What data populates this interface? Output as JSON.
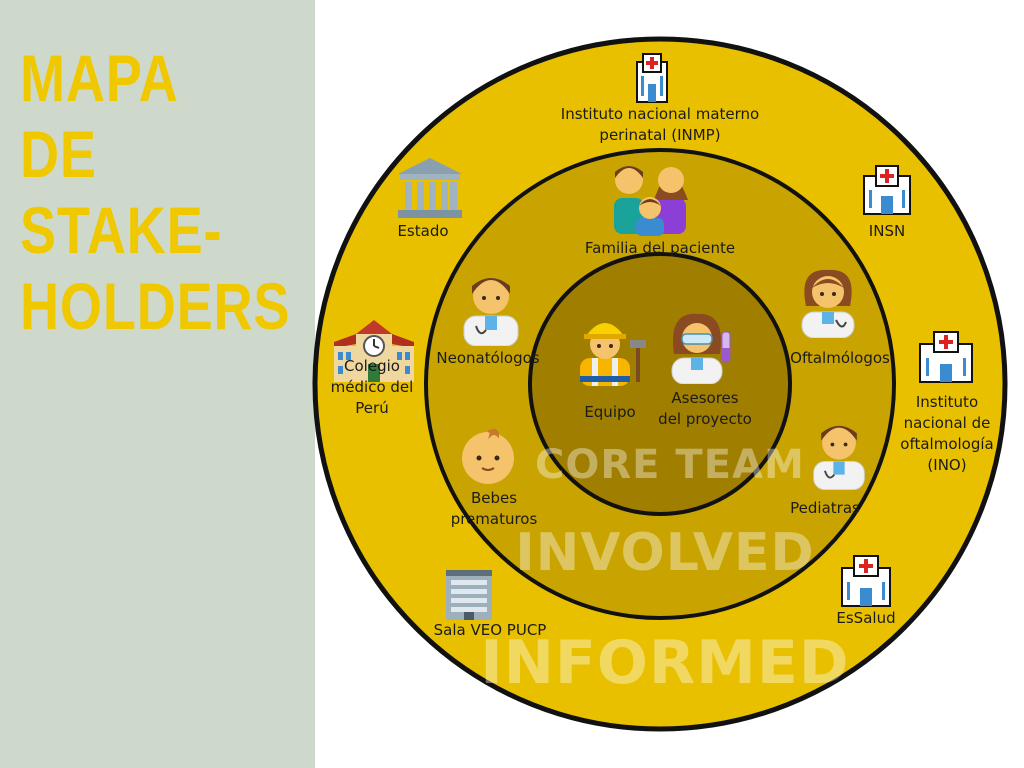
{
  "title_lines": [
    "MAPA",
    "DE",
    "STAKE-",
    "HOLDERS"
  ],
  "colors": {
    "sidebar": "#cfd9cb",
    "title": "#f0c800",
    "outer_ring": "#e8c000",
    "middle_ring": "#c9a400",
    "inner_core": "#a07e00",
    "stroke": "#111111"
  },
  "rings": {
    "core": "CORE TEAM",
    "involved": "INVOLVED",
    "informed": "INFORMED"
  },
  "stakeholders": {
    "inmp": {
      "label_line1": "Instituto nacional materno",
      "label_line2": "perinatal (INMP)",
      "icon": "hospital-icon"
    },
    "estado": {
      "label": "Estado",
      "icon": "government-building-icon"
    },
    "insn": {
      "label": "INSN",
      "icon": "hospital-icon"
    },
    "familia": {
      "label": "Familia del paciente",
      "icon": "family-icon"
    },
    "colegio": {
      "label_line1": "Colegio",
      "label_line2": "médico del",
      "label_line3": "Perú",
      "icon": "school-building-icon"
    },
    "neonatologos": {
      "label": "Neonatólogos",
      "icon": "male-doctor-icon"
    },
    "oftalmologos": {
      "label": "Oftalmólogos",
      "icon": "female-doctor-icon"
    },
    "ino": {
      "label_line1": "Instituto",
      "label_line2": "nacional de",
      "label_line3": "oftalmología",
      "label_line4": "(INO)",
      "icon": "hospital-icon"
    },
    "equipo": {
      "label": "Equipo",
      "icon": "construction-worker-icon"
    },
    "asesores": {
      "label_line1": "Asesores",
      "label_line2": "del proyecto",
      "icon": "female-scientist-icon"
    },
    "bebes": {
      "label_line1": "Bebes",
      "label_line2": "prematuros",
      "icon": "baby-icon"
    },
    "pediatras": {
      "label": "Pediatras",
      "icon": "male-doctor-icon"
    },
    "sala": {
      "label": "Sala  VEO PUCP",
      "icon": "office-building-icon"
    },
    "essalud": {
      "label": "EsSalud",
      "icon": "hospital-icon"
    }
  }
}
